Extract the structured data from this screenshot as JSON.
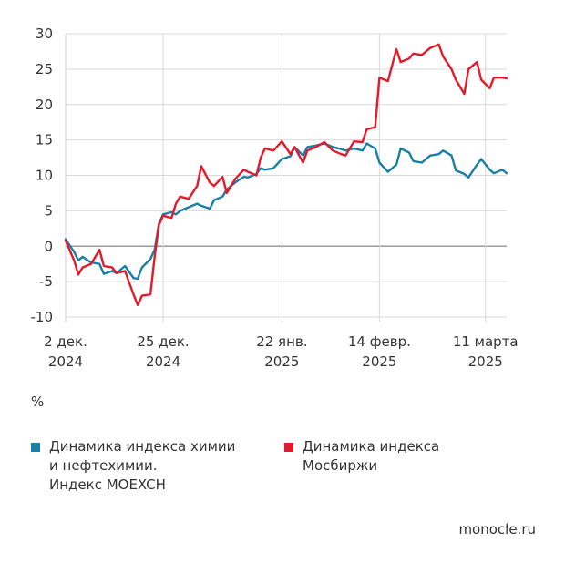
{
  "chart_data": {
    "type": "line",
    "unit_label": "%",
    "ylim": [
      -10,
      30
    ],
    "yticks": [
      -10,
      -5,
      0,
      5,
      10,
      15,
      20,
      25,
      30
    ],
    "x_ticks": [
      {
        "date": "2024-12-02",
        "line1": "2 дек.",
        "line2": "2024"
      },
      {
        "date": "2024-12-25",
        "line1": "25 дек.",
        "line2": "2024"
      },
      {
        "date": "2025-01-22",
        "line1": "22 янв.",
        "line2": "2025"
      },
      {
        "date": "2025-02-14",
        "line1": "14 февр.",
        "line2": "2025"
      },
      {
        "date": "2025-03-11",
        "line1": "11 марта",
        "line2": "2025"
      }
    ],
    "grid": true,
    "legend_position": "bottom",
    "series": [
      {
        "name": "Динамика индекса химии и нефтехимии. Индекс MOEXCH",
        "color": "#1a7fa6",
        "points": [
          [
            "2024-12-02",
            1.0
          ],
          [
            "2024-12-04",
            -0.8
          ],
          [
            "2024-12-05",
            -2.0
          ],
          [
            "2024-12-06",
            -1.5
          ],
          [
            "2024-12-08",
            -2.3
          ],
          [
            "2024-12-10",
            -2.5
          ],
          [
            "2024-12-11",
            -3.9
          ],
          [
            "2024-12-13",
            -3.5
          ],
          [
            "2024-12-14",
            -3.8
          ],
          [
            "2024-12-16",
            -2.8
          ],
          [
            "2024-12-18",
            -4.5
          ],
          [
            "2024-12-19",
            -4.6
          ],
          [
            "2024-12-20",
            -3.0
          ],
          [
            "2024-12-22",
            -1.8
          ],
          [
            "2024-12-23",
            -0.5
          ],
          [
            "2024-12-24",
            3.2
          ],
          [
            "2024-12-25",
            4.5
          ],
          [
            "2024-12-27",
            4.8
          ],
          [
            "2024-12-28",
            4.5
          ],
          [
            "2024-12-29",
            5.0
          ],
          [
            "2024-12-31",
            5.5
          ],
          [
            "2025-01-02",
            6.0
          ],
          [
            "2025-01-03",
            5.7
          ],
          [
            "2025-01-05",
            5.3
          ],
          [
            "2025-01-06",
            6.5
          ],
          [
            "2025-01-08",
            7.0
          ],
          [
            "2025-01-09",
            8.0
          ],
          [
            "2025-01-11",
            9.0
          ],
          [
            "2025-01-13",
            9.8
          ],
          [
            "2025-01-14",
            9.7
          ],
          [
            "2025-01-16",
            10.2
          ],
          [
            "2025-01-17",
            11.0
          ],
          [
            "2025-01-18",
            10.8
          ],
          [
            "2025-01-20",
            11.0
          ],
          [
            "2025-01-22",
            12.3
          ],
          [
            "2025-01-24",
            12.7
          ],
          [
            "2025-01-25",
            14.0
          ],
          [
            "2025-01-27",
            12.8
          ],
          [
            "2025-01-28",
            14.0
          ],
          [
            "2025-01-30",
            14.2
          ],
          [
            "2025-02-01",
            14.5
          ],
          [
            "2025-02-03",
            14.0
          ],
          [
            "2025-02-05",
            13.7
          ],
          [
            "2025-02-06",
            13.5
          ],
          [
            "2025-02-08",
            13.8
          ],
          [
            "2025-02-10",
            13.5
          ],
          [
            "2025-02-11",
            14.5
          ],
          [
            "2025-02-13",
            13.8
          ],
          [
            "2025-02-14",
            11.8
          ],
          [
            "2025-02-16",
            10.5
          ],
          [
            "2025-02-18",
            11.5
          ],
          [
            "2025-02-19",
            13.8
          ],
          [
            "2025-02-21",
            13.2
          ],
          [
            "2025-02-22",
            12.0
          ],
          [
            "2025-02-24",
            11.8
          ],
          [
            "2025-02-26",
            12.8
          ],
          [
            "2025-02-28",
            13.0
          ],
          [
            "2025-03-01",
            13.5
          ],
          [
            "2025-03-03",
            12.8
          ],
          [
            "2025-03-04",
            10.7
          ],
          [
            "2025-03-06",
            10.2
          ],
          [
            "2025-03-07",
            9.7
          ],
          [
            "2025-03-09",
            11.5
          ],
          [
            "2025-03-10",
            12.3
          ],
          [
            "2025-03-12",
            10.8
          ],
          [
            "2025-03-13",
            10.3
          ],
          [
            "2025-03-15",
            10.8
          ],
          [
            "2025-03-16",
            10.3
          ]
        ]
      },
      {
        "name": "Динамика индекса Мосбиржи",
        "color": "#e11b2b",
        "points": [
          [
            "2024-12-02",
            0.8
          ],
          [
            "2024-12-04",
            -2.0
          ],
          [
            "2024-12-05",
            -4.0
          ],
          [
            "2024-12-06",
            -3.0
          ],
          [
            "2024-12-08",
            -2.5
          ],
          [
            "2024-12-10",
            -0.5
          ],
          [
            "2024-12-11",
            -2.8
          ],
          [
            "2024-12-13",
            -3.0
          ],
          [
            "2024-12-14",
            -3.8
          ],
          [
            "2024-12-16",
            -3.5
          ],
          [
            "2024-12-18",
            -6.8
          ],
          [
            "2024-12-19",
            -8.3
          ],
          [
            "2024-12-20",
            -7.0
          ],
          [
            "2024-12-22",
            -6.8
          ],
          [
            "2024-12-23",
            -1.5
          ],
          [
            "2024-12-24",
            3.0
          ],
          [
            "2024-12-25",
            4.3
          ],
          [
            "2024-12-27",
            4.0
          ],
          [
            "2024-12-28",
            6.0
          ],
          [
            "2024-12-29",
            7.0
          ],
          [
            "2024-12-31",
            6.7
          ],
          [
            "2025-01-02",
            8.5
          ],
          [
            "2025-01-03",
            11.3
          ],
          [
            "2025-01-05",
            9.0
          ],
          [
            "2025-01-06",
            8.5
          ],
          [
            "2025-01-08",
            9.8
          ],
          [
            "2025-01-09",
            7.5
          ],
          [
            "2025-01-11",
            9.5
          ],
          [
            "2025-01-13",
            10.8
          ],
          [
            "2025-01-14",
            10.5
          ],
          [
            "2025-01-16",
            10.0
          ],
          [
            "2025-01-17",
            12.5
          ],
          [
            "2025-01-18",
            13.8
          ],
          [
            "2025-01-20",
            13.5
          ],
          [
            "2025-01-22",
            14.8
          ],
          [
            "2025-01-24",
            13.0
          ],
          [
            "2025-01-25",
            14.0
          ],
          [
            "2025-01-27",
            11.8
          ],
          [
            "2025-01-28",
            13.5
          ],
          [
            "2025-01-30",
            14.0
          ],
          [
            "2025-02-01",
            14.7
          ],
          [
            "2025-02-03",
            13.5
          ],
          [
            "2025-02-05",
            13.0
          ],
          [
            "2025-02-06",
            12.8
          ],
          [
            "2025-02-08",
            14.8
          ],
          [
            "2025-02-10",
            14.7
          ],
          [
            "2025-02-11",
            16.5
          ],
          [
            "2025-02-13",
            16.8
          ],
          [
            "2025-02-14",
            23.8
          ],
          [
            "2025-02-16",
            23.3
          ],
          [
            "2025-02-18",
            27.8
          ],
          [
            "2025-02-19",
            26.0
          ],
          [
            "2025-02-21",
            26.5
          ],
          [
            "2025-02-22",
            27.2
          ],
          [
            "2025-02-24",
            27.0
          ],
          [
            "2025-02-26",
            28.0
          ],
          [
            "2025-02-28",
            28.5
          ],
          [
            "2025-03-01",
            26.8
          ],
          [
            "2025-03-03",
            25.0
          ],
          [
            "2025-03-04",
            23.5
          ],
          [
            "2025-03-06",
            21.5
          ],
          [
            "2025-03-07",
            25.0
          ],
          [
            "2025-03-09",
            26.0
          ],
          [
            "2025-03-10",
            23.5
          ],
          [
            "2025-03-12",
            22.3
          ],
          [
            "2025-03-13",
            23.8
          ],
          [
            "2025-03-15",
            23.8
          ],
          [
            "2025-03-16",
            23.7
          ]
        ]
      }
    ]
  },
  "legend": [
    {
      "lines": [
        "Динамика индекса химии",
        "и нефтехимии.",
        "Индекс MOEXCH"
      ],
      "color": "#1a7fa6"
    },
    {
      "lines": [
        "Динамика индекса",
        "Мосбиржи"
      ],
      "color": "#e11b2b"
    }
  ],
  "source": "monocle.ru"
}
